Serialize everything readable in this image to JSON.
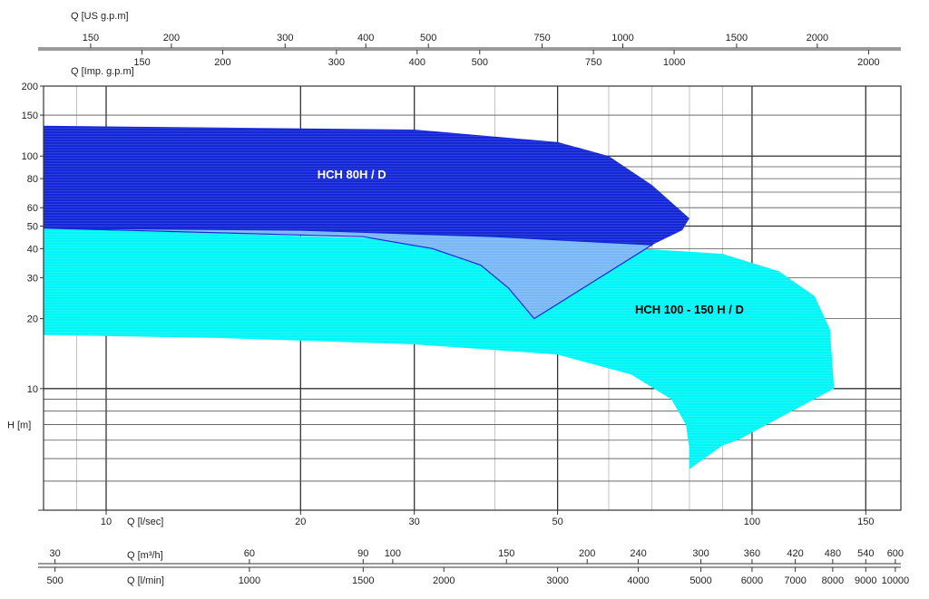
{
  "chart_data": {
    "type": "area",
    "title": "",
    "x_scale": "log",
    "y_scale": "log",
    "xlim": [
      8,
      170
    ],
    "ylim": [
      3,
      200
    ],
    "ylabel": "H  [m]",
    "y_ticks": [
      200,
      150,
      100,
      80,
      60,
      50,
      40,
      30,
      20,
      10
    ],
    "x_axes": [
      {
        "id": "us-gpm",
        "position": "top-1",
        "label": "Q  [US g.p.m]",
        "factor": 15.85,
        "ticks": [
          150,
          200,
          300,
          400,
          500,
          750,
          1000,
          1500,
          2000
        ]
      },
      {
        "id": "imp-gpm",
        "position": "top-2",
        "label": "Q  [Imp. g.p.m]",
        "factor": 13.2,
        "ticks": [
          150,
          200,
          300,
          400,
          500,
          750,
          1000,
          2000
        ]
      },
      {
        "id": "l-sec",
        "position": "bottom-1",
        "label": "Q  [l/sec]",
        "factor": 1,
        "ticks": [
          10,
          20,
          30,
          50,
          100,
          150
        ]
      },
      {
        "id": "m3h",
        "position": "bottom-2",
        "label": "Q  [m³/h]",
        "factor": 3.6,
        "ticks": [
          30,
          60,
          90,
          100,
          150,
          200,
          240,
          300,
          360,
          420,
          480,
          540,
          600
        ]
      },
      {
        "id": "l-min",
        "position": "bottom-3",
        "label": "Q  [l/min]",
        "factor": 60,
        "ticks": [
          500,
          1000,
          1500,
          2000,
          3000,
          4000,
          5000,
          6000,
          7000,
          8000,
          9000,
          10000
        ]
      }
    ],
    "series": [
      {
        "name": "HCH 100 - 150 H / D",
        "color": "#00f6f6",
        "polygon": [
          [
            8,
            49
          ],
          [
            25,
            44.5
          ],
          [
            40,
            41
          ],
          [
            60,
            40.8
          ],
          [
            90,
            38
          ],
          [
            110,
            32
          ],
          [
            125,
            25
          ],
          [
            132,
            18
          ],
          [
            134,
            10
          ],
          [
            95,
            6
          ],
          [
            90,
            5.7
          ],
          [
            80,
            4.5
          ],
          [
            80,
            5.5
          ],
          [
            79,
            7
          ],
          [
            75,
            9
          ],
          [
            65,
            11.5
          ],
          [
            50,
            14
          ],
          [
            30,
            15.5
          ],
          [
            15,
            16.5
          ],
          [
            8,
            17
          ]
        ]
      },
      {
        "name": "HCH 80H / D",
        "color": "#1428d8",
        "polygon": [
          [
            8,
            135
          ],
          [
            30,
            130
          ],
          [
            50,
            115
          ],
          [
            60,
            100
          ],
          [
            70,
            75
          ],
          [
            80,
            54
          ],
          [
            78,
            48
          ],
          [
            70,
            41.5
          ],
          [
            40,
            45
          ],
          [
            20,
            48
          ],
          [
            8,
            49
          ]
        ]
      },
      {
        "name": "",
        "color": "#7ab8f5",
        "polygon": [
          [
            8,
            49
          ],
          [
            25,
            45
          ],
          [
            32,
            40
          ],
          [
            38,
            34
          ],
          [
            42,
            27
          ],
          [
            46,
            20
          ],
          [
            70,
            41.5
          ],
          [
            40,
            45
          ],
          [
            20,
            48
          ]
        ]
      }
    ],
    "annotations": [
      {
        "text": "HCH 80H / D",
        "x": 24,
        "y": 80,
        "color": "#ffffff"
      },
      {
        "text": "HCH 100 - 150 H / D",
        "x": 80,
        "y": 21,
        "color": "#000000"
      }
    ]
  }
}
